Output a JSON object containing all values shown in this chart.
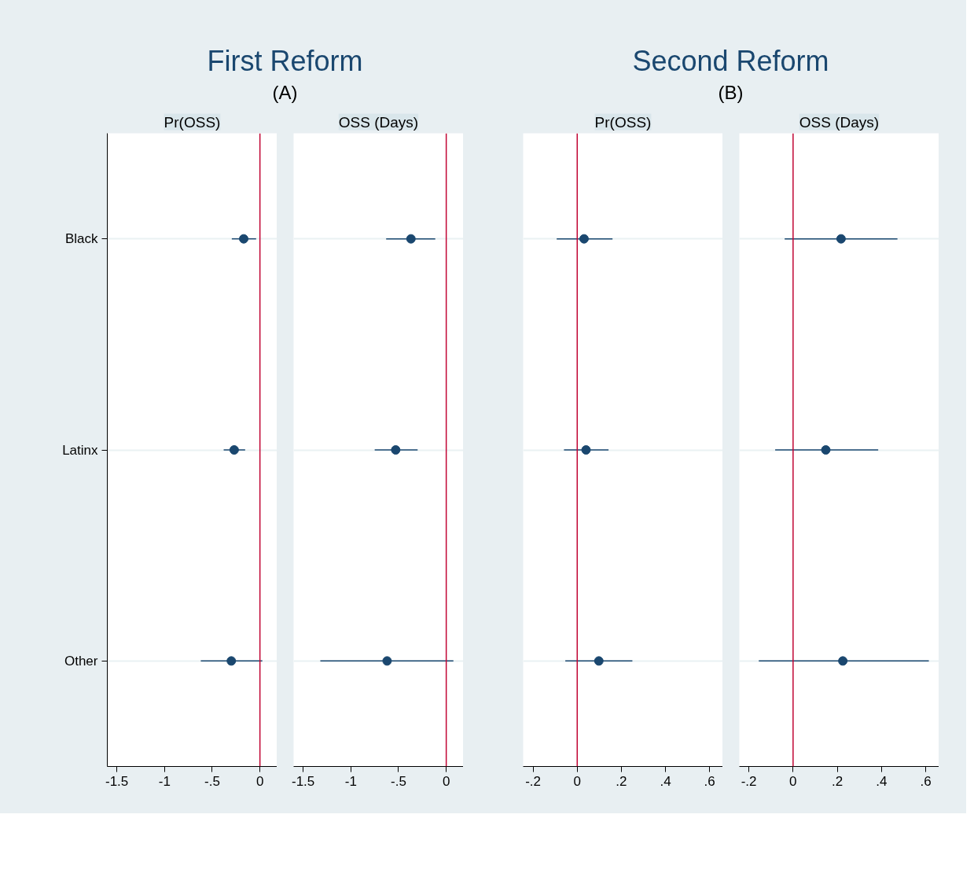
{
  "chart_data": [
    {
      "type": "scatter",
      "orientation": "horizontal",
      "title": "Pr(OSS)",
      "annotations": [
        "First Reform",
        "(A)"
      ],
      "categories": [
        "Black",
        "Latinx",
        "Other"
      ],
      "values": [
        -0.17,
        -0.27,
        -0.3
      ],
      "errors": [
        [
          -0.295,
          -0.04
        ],
        [
          -0.38,
          -0.155
        ],
        [
          -0.62,
          0.025
        ]
      ],
      "color": "#1a476f",
      "marker": "circle",
      "xlim": [
        -1.6,
        0.18
      ],
      "xticks": [
        -1.5,
        -1,
        {
          "value": -0.5,
          "label": "-.5"
        },
        0
      ],
      "grid": "y",
      "ref_lines": [
        {
          "axis": "x",
          "value": 0,
          "color": "#c10534"
        }
      ]
    },
    {
      "type": "scatter",
      "orientation": "horizontal",
      "title": "OSS (Days)",
      "categories": [
        null,
        null,
        null
      ],
      "values": [
        -0.37,
        -0.53,
        -0.62
      ],
      "errors": [
        [
          -0.63,
          -0.115
        ],
        [
          -0.75,
          -0.3
        ],
        [
          -1.32,
          0.075
        ]
      ],
      "color": "#1a476f",
      "marker": "circle",
      "xlim": [
        -1.6,
        0.18
      ],
      "xticks": [
        -1.5,
        -1,
        {
          "value": -0.5,
          "label": "-.5"
        },
        0
      ],
      "grid": "y",
      "tick_labels": "x",
      "ref_lines": [
        {
          "axis": "x",
          "value": 0,
          "color": "#c10534"
        }
      ]
    },
    {
      "type": "scatter",
      "orientation": "horizontal",
      "title": "Pr(OSS)",
      "annotations": [
        "Second Reform",
        "(B)"
      ],
      "categories": [
        null,
        null,
        null
      ],
      "values": [
        0.031,
        0.04,
        0.098
      ],
      "errors": [
        [
          -0.093,
          0.16
        ],
        [
          -0.06,
          0.142
        ],
        [
          -0.054,
          0.25
        ]
      ],
      "color": "#1a476f",
      "marker": "circle",
      "xlim": [
        -0.245,
        0.66
      ],
      "xticks": [
        {
          "value": -0.2,
          "label": "-.2"
        },
        0,
        {
          "value": 0.2,
          "label": ".2"
        },
        {
          "value": 0.4,
          "label": ".4"
        },
        {
          "value": 0.6,
          "label": ".6"
        }
      ],
      "grid": "y",
      "tick_labels": "x",
      "ref_lines": [
        {
          "axis": "x",
          "value": 0,
          "color": "#c10534"
        }
      ]
    },
    {
      "type": "scatter",
      "orientation": "horizontal",
      "title": "OSS (Days)",
      "categories": [
        null,
        null,
        null
      ],
      "values": [
        0.217,
        0.148,
        0.225
      ],
      "errors": [
        [
          -0.038,
          0.472
        ],
        [
          -0.081,
          0.385
        ],
        [
          -0.155,
          0.614
        ]
      ],
      "color": "#1a476f",
      "marker": "circle",
      "xlim": [
        -0.243,
        0.66
      ],
      "xticks": [
        {
          "value": -0.2,
          "label": "-.2"
        },
        0,
        {
          "value": 0.2,
          "label": ".2"
        },
        {
          "value": 0.4,
          "label": ".4"
        },
        {
          "value": 0.6,
          "label": ".6"
        }
      ],
      "grid": "y",
      "tick_labels": "x",
      "ref_lines": [
        {
          "axis": "x",
          "value": 0,
          "color": "#c10534"
        }
      ]
    }
  ]
}
